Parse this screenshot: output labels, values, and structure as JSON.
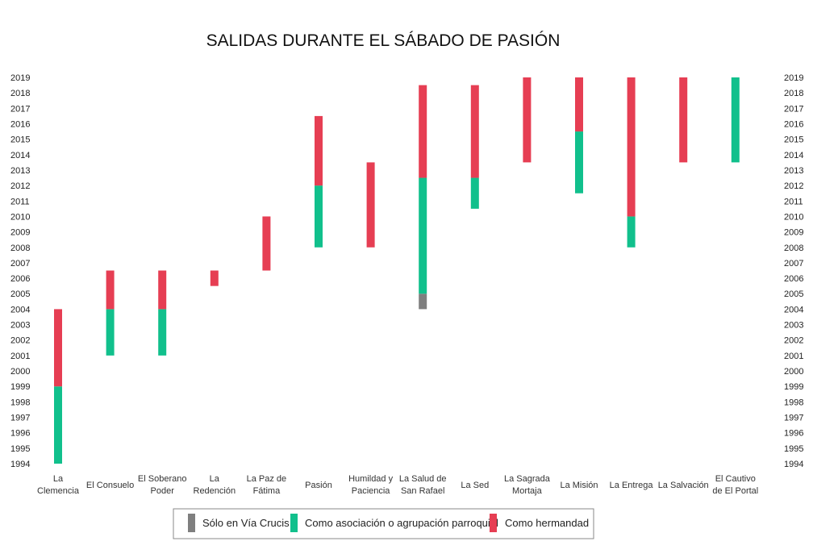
{
  "chart_data": {
    "type": "bar",
    "subtype": "floating-range",
    "title": "SALIDAS DURANTE EL SÁBADO DE PASIÓN",
    "ylim": [
      1994,
      2019
    ],
    "y_ticks": [
      "1994",
      "1995",
      "1996",
      "1997",
      "1998",
      "1999",
      "2000",
      "2001",
      "2002",
      "2003",
      "2004",
      "2005",
      "2006",
      "2007",
      "2008",
      "2009",
      "2010",
      "2011",
      "2012",
      "2013",
      "2014",
      "2015",
      "2016",
      "2017",
      "2018",
      "2019"
    ],
    "y_axes": [
      "left",
      "right"
    ],
    "grid": false,
    "legend_position": "bottom",
    "categories": [
      {
        "label": [
          "La",
          "Clemencia"
        ]
      },
      {
        "label": [
          "El Consuelo"
        ]
      },
      {
        "label": [
          "El Soberano",
          "Poder"
        ]
      },
      {
        "label": [
          "La",
          "Redención"
        ]
      },
      {
        "label": [
          "La Paz de",
          "Fátima"
        ]
      },
      {
        "label": [
          "Pasión"
        ]
      },
      {
        "label": [
          "Humildad y",
          "Paciencia"
        ]
      },
      {
        "label": [
          "La Salud de",
          "San Rafael"
        ]
      },
      {
        "label": [
          "La Sed"
        ]
      },
      {
        "label": [
          "La Sagrada",
          "Mortaja"
        ]
      },
      {
        "label": [
          "La Misión"
        ]
      },
      {
        "label": [
          "La Entrega"
        ]
      },
      {
        "label": [
          "La Salvación"
        ]
      },
      {
        "label": [
          "El Cautivo",
          "de El Portal"
        ]
      }
    ],
    "series": [
      {
        "name": "Sólo en Vía Crucis",
        "color": "#7f7f7f",
        "ranges": [
          null,
          null,
          null,
          null,
          null,
          null,
          null,
          [
            2004,
            2005
          ],
          null,
          null,
          null,
          null,
          null,
          null
        ]
      },
      {
        "name": "Como asociación o agrupación parroquial",
        "color": "#11c08c",
        "ranges": [
          [
            1994,
            1999
          ],
          [
            2001,
            2004
          ],
          [
            2001,
            2004
          ],
          null,
          null,
          [
            2008,
            2012
          ],
          null,
          [
            2005,
            2012.5
          ],
          [
            2010.5,
            2012.5
          ],
          null,
          [
            2011.5,
            2015.5
          ],
          [
            2008,
            2010
          ],
          null,
          [
            2013.5,
            2019
          ]
        ]
      },
      {
        "name": "Como hermandad",
        "color": "#e63e53",
        "ranges": [
          [
            1999,
            2004
          ],
          [
            2004,
            2006.5
          ],
          [
            2004,
            2006.5
          ],
          [
            2005.5,
            2006.5
          ],
          [
            2006.5,
            2010
          ],
          [
            2012,
            2016.5
          ],
          [
            2008,
            2013.5
          ],
          [
            2012.5,
            2018.5
          ],
          [
            2012.5,
            2018.5
          ],
          [
            2013.5,
            2019
          ],
          [
            2015.5,
            2019
          ],
          [
            2010,
            2019
          ],
          [
            2013.5,
            2019
          ],
          null
        ]
      }
    ]
  }
}
